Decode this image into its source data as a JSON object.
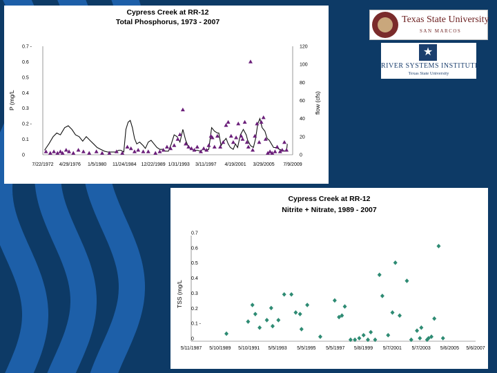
{
  "logos": {
    "txst_name": "Texas State University",
    "txst_sub": "SAN MARCOS",
    "rsi_name": "RIVER SYSTEMS INSTITUTE",
    "rsi_sub": "Texas State University"
  },
  "colors": {
    "background": "#0d3a66",
    "wave": "#1d5fa8",
    "phos_marker": "#6b1f7a",
    "no3_marker": "#2e8b73"
  },
  "chart_data": [
    {
      "type": "scatter",
      "title": "Cypress Creek at RR-12",
      "subtitle": "Total Phosphorus, 1973 - 2007",
      "ylabel": "P (mg/L",
      "y2label": "flow (cfs)",
      "ylim": [
        0,
        0.7
      ],
      "y2lim": [
        0,
        120
      ],
      "yticks": [
        "0",
        "0.1",
        "0.2 -",
        "0.3",
        "0.4",
        "0.5",
        "0.6",
        "0.7 -"
      ],
      "y2ticks": [
        "0",
        "20",
        "40",
        "60",
        "80",
        "100",
        "120"
      ],
      "xlim": [
        1972.56,
        2007.25
      ],
      "xticks": [
        {
          "x": 1972.56,
          "label": "7/22/1972"
        },
        {
          "x": 1976.33,
          "label": "4/29/1976"
        },
        {
          "x": 1980.1,
          "label": "1/5/1980"
        },
        {
          "x": 1983.89,
          "label": "11/24/1984"
        },
        {
          "x": 1987.91,
          "label": "12/22/1989"
        },
        {
          "x": 1991.46,
          "label": "1/31/1993"
        },
        {
          "x": 1995.2,
          "label": "3/11/1997"
        },
        {
          "x": 1999.3,
          "label": "4/19/2001"
        },
        {
          "x": 2003.24,
          "label": "3/29/2005"
        },
        {
          "x": 2007.25,
          "label": "7/9/2009"
        }
      ],
      "series": [
        {
          "name": "Total Phosphorus",
          "marker": "triangle",
          "points": [
            [
              1973.0,
              0.02
            ],
            [
              1973.6,
              0.01
            ],
            [
              1974.1,
              0.02
            ],
            [
              1974.6,
              0.01
            ],
            [
              1975.0,
              0.02
            ],
            [
              1975.3,
              0.01
            ],
            [
              1975.8,
              0.03
            ],
            [
              1976.2,
              0.02
            ],
            [
              1976.8,
              0.01
            ],
            [
              1977.5,
              0.03
            ],
            [
              1978.2,
              0.02
            ],
            [
              1979.0,
              0.01
            ],
            [
              1980.0,
              0.02
            ],
            [
              1980.8,
              0.01
            ],
            [
              1981.8,
              0.01
            ],
            [
              1982.8,
              0.02
            ],
            [
              1983.6,
              0.01
            ],
            [
              1984.3,
              0.05
            ],
            [
              1984.8,
              0.04
            ],
            [
              1985.3,
              0.02
            ],
            [
              1985.8,
              0.03
            ],
            [
              1986.5,
              0.02
            ],
            [
              1987.2,
              0.02
            ],
            [
              1988.2,
              0.01
            ],
            [
              1988.8,
              0.02
            ],
            [
              1989.3,
              0.03
            ],
            [
              1989.8,
              0.05
            ],
            [
              1990.3,
              0.04
            ],
            [
              1990.8,
              0.06
            ],
            [
              1991.3,
              0.1
            ],
            [
              1991.6,
              0.13
            ],
            [
              1992.0,
              0.29
            ],
            [
              1992.4,
              0.07
            ],
            [
              1992.8,
              0.05
            ],
            [
              1993.2,
              0.04
            ],
            [
              1993.6,
              0.03
            ],
            [
              1994.0,
              0.05
            ],
            [
              1994.5,
              0.02
            ],
            [
              1994.9,
              0.04
            ],
            [
              1995.3,
              0.03
            ],
            [
              1995.6,
              0.06
            ],
            [
              1995.9,
              0.12
            ],
            [
              1996.1,
              0.11
            ],
            [
              1996.4,
              0.05
            ],
            [
              1996.8,
              0.12
            ],
            [
              1997.2,
              0.05
            ],
            [
              1997.6,
              0.08
            ],
            [
              1998.0,
              0.19
            ],
            [
              1998.3,
              0.21
            ],
            [
              1998.7,
              0.12
            ],
            [
              1999.0,
              0.08
            ],
            [
              1999.4,
              0.11
            ],
            [
              1999.7,
              0.2
            ],
            [
              2000.1,
              0.12
            ],
            [
              2000.3,
              0.1
            ],
            [
              2000.6,
              0.21
            ],
            [
              2000.9,
              0.08
            ],
            [
              2001.1,
              0.05
            ],
            [
              2001.4,
              0.6
            ],
            [
              2001.7,
              0.03
            ],
            [
              2002.0,
              0.12
            ],
            [
              2002.3,
              0.2
            ],
            [
              2002.6,
              0.08
            ],
            [
              2002.9,
              0.21
            ],
            [
              2003.2,
              0.24
            ],
            [
              2003.5,
              0.1
            ],
            [
              2003.8,
              0.01
            ],
            [
              2004.1,
              0.02
            ],
            [
              2004.4,
              0.01
            ],
            [
              2004.8,
              0.02
            ],
            [
              2005.1,
              0.05
            ],
            [
              2005.5,
              0.02
            ],
            [
              2005.8,
              0.03
            ],
            [
              2006.1,
              0.08
            ],
            [
              2006.4,
              0.03
            ]
          ]
        },
        {
          "name": "Flow (cfs)",
          "marker": "line",
          "axis": "y2",
          "points": [
            [
              1972.8,
              5
            ],
            [
              1973.4,
              12
            ],
            [
              1974.0,
              20
            ],
            [
              1974.5,
              24
            ],
            [
              1975.0,
              22
            ],
            [
              1975.6,
              30
            ],
            [
              1976.1,
              32
            ],
            [
              1976.6,
              28
            ],
            [
              1977.1,
              22
            ],
            [
              1977.6,
              20
            ],
            [
              1978.1,
              15
            ],
            [
              1978.6,
              20
            ],
            [
              1979.1,
              16
            ],
            [
              1979.6,
              12
            ],
            [
              1980.1,
              8
            ],
            [
              1980.6,
              6
            ],
            [
              1981.1,
              4
            ],
            [
              1981.6,
              3
            ],
            [
              1982.1,
              3
            ],
            [
              1982.6,
              3
            ],
            [
              1983.1,
              5
            ],
            [
              1983.4,
              5
            ],
            [
              1983.8,
              3
            ],
            [
              1984.1,
              28
            ],
            [
              1984.4,
              36
            ],
            [
              1984.7,
              38
            ],
            [
              1985.0,
              30
            ],
            [
              1985.3,
              18
            ],
            [
              1985.6,
              12
            ],
            [
              1986.0,
              14
            ],
            [
              1986.5,
              10
            ],
            [
              1986.8,
              7
            ],
            [
              1987.2,
              14
            ],
            [
              1987.6,
              16
            ],
            [
              1988.0,
              12
            ],
            [
              1988.4,
              8
            ],
            [
              1988.8,
              6
            ],
            [
              1989.2,
              6
            ],
            [
              1989.6,
              4
            ],
            [
              1990.0,
              4
            ],
            [
              1990.4,
              12
            ],
            [
              1990.8,
              22
            ],
            [
              1991.2,
              20
            ],
            [
              1991.6,
              14
            ],
            [
              1992.0,
              28
            ],
            [
              1992.4,
              16
            ],
            [
              1992.8,
              8
            ],
            [
              1993.2,
              6
            ],
            [
              1993.6,
              5
            ],
            [
              1994.0,
              5
            ],
            [
              1994.4,
              4
            ],
            [
              1994.8,
              6
            ],
            [
              1995.2,
              5
            ],
            [
              1995.6,
              6
            ],
            [
              1996.0,
              30
            ],
            [
              1996.4,
              26
            ],
            [
              1996.8,
              24
            ],
            [
              1997.0,
              24
            ],
            [
              1997.3,
              10
            ],
            [
              1997.6,
              14
            ],
            [
              1998.0,
              18
            ],
            [
              1998.3,
              12
            ],
            [
              1998.6,
              8
            ],
            [
              1999.0,
              6
            ],
            [
              1999.3,
              12
            ],
            [
              1999.6,
              8
            ],
            [
              2000.0,
              22
            ],
            [
              2000.4,
              28
            ],
            [
              2000.8,
              22
            ],
            [
              2001.0,
              16
            ],
            [
              2001.4,
              10
            ],
            [
              2001.8,
              8
            ],
            [
              2002.1,
              18
            ],
            [
              2002.4,
              34
            ],
            [
              2002.7,
              40
            ],
            [
              2003.0,
              30
            ],
            [
              2003.4,
              26
            ],
            [
              2003.7,
              18
            ],
            [
              2004.0,
              16
            ],
            [
              2004.3,
              12
            ],
            [
              2004.6,
              8
            ],
            [
              2005.0,
              8
            ],
            [
              2005.4,
              6
            ],
            [
              2005.8,
              5
            ],
            [
              2006.2,
              4
            ],
            [
              2006.4,
              4
            ],
            [
              2006.5,
              12
            ]
          ]
        }
      ]
    },
    {
      "type": "scatter",
      "title": "Cypress Creek at RR-12",
      "subtitle": "Nitrite + Nitrate, 1989 - 2007",
      "ylabel": "TSS (mg/L",
      "ylim": [
        0,
        0.7
      ],
      "yticks": [
        "0",
        "0.1 -",
        "0.2",
        "0.3",
        "0.4",
        "0.5",
        "0.6",
        "0.7"
      ],
      "xlim": [
        1987.36,
        2007.06
      ],
      "xticks": [
        {
          "x": 1987.36,
          "label": "5/11/1987"
        },
        {
          "x": 1989.36,
          "label": "5/10/1989"
        },
        {
          "x": 1991.36,
          "label": "5/10/1991"
        },
        {
          "x": 1993.34,
          "label": "5/5/1993"
        },
        {
          "x": 1995.34,
          "label": "5/5/1995"
        },
        {
          "x": 1997.34,
          "label": "5/5/1997"
        },
        {
          "x": 1999.29,
          "label": "5/8/1999"
        },
        {
          "x": 2001.29,
          "label": "5/7/2001"
        },
        {
          "x": 2003.29,
          "label": "5/7/2003"
        },
        {
          "x": 2005.26,
          "label": "5/6/2005"
        },
        {
          "x": 2007.06,
          "label": "5/6/2007"
        }
      ],
      "series": [
        {
          "name": "Nitrite + Nitrate",
          "marker": "diamond",
          "points": [
            [
              1989.8,
              0.05
            ],
            [
              1991.3,
              0.13
            ],
            [
              1991.6,
              0.24
            ],
            [
              1991.8,
              0.18
            ],
            [
              1992.1,
              0.09
            ],
            [
              1992.6,
              0.14
            ],
            [
              1992.9,
              0.22
            ],
            [
              1993.0,
              0.1
            ],
            [
              1993.4,
              0.14
            ],
            [
              1993.8,
              0.31
            ],
            [
              1994.3,
              0.31
            ],
            [
              1994.6,
              0.19
            ],
            [
              1994.9,
              0.18
            ],
            [
              1995.0,
              0.08
            ],
            [
              1995.4,
              0.24
            ],
            [
              1996.3,
              0.03
            ],
            [
              1997.3,
              0.27
            ],
            [
              1997.6,
              0.16
            ],
            [
              1997.8,
              0.17
            ],
            [
              1998.0,
              0.23
            ],
            [
              1998.4,
              0.01
            ],
            [
              1998.7,
              0.01
            ],
            [
              1999.0,
              0.02
            ],
            [
              1999.3,
              0.04
            ],
            [
              1999.6,
              0.01
            ],
            [
              1999.8,
              0.06
            ],
            [
              2000.1,
              0.01
            ],
            [
              2000.4,
              0.44
            ],
            [
              2000.6,
              0.3
            ],
            [
              2001.0,
              0.04
            ],
            [
              2001.3,
              0.19
            ],
            [
              2001.5,
              0.52
            ],
            [
              2001.8,
              0.17
            ],
            [
              2002.3,
              0.4
            ],
            [
              2002.6,
              0.01
            ],
            [
              2003.0,
              0.07
            ],
            [
              2003.2,
              0.02
            ],
            [
              2003.3,
              0.09
            ],
            [
              2003.7,
              0.01
            ],
            [
              2003.8,
              0.02
            ],
            [
              2004.0,
              0.03
            ],
            [
              2004.2,
              0.15
            ],
            [
              2004.5,
              0.63
            ],
            [
              2004.8,
              0.02
            ]
          ]
        }
      ]
    }
  ]
}
